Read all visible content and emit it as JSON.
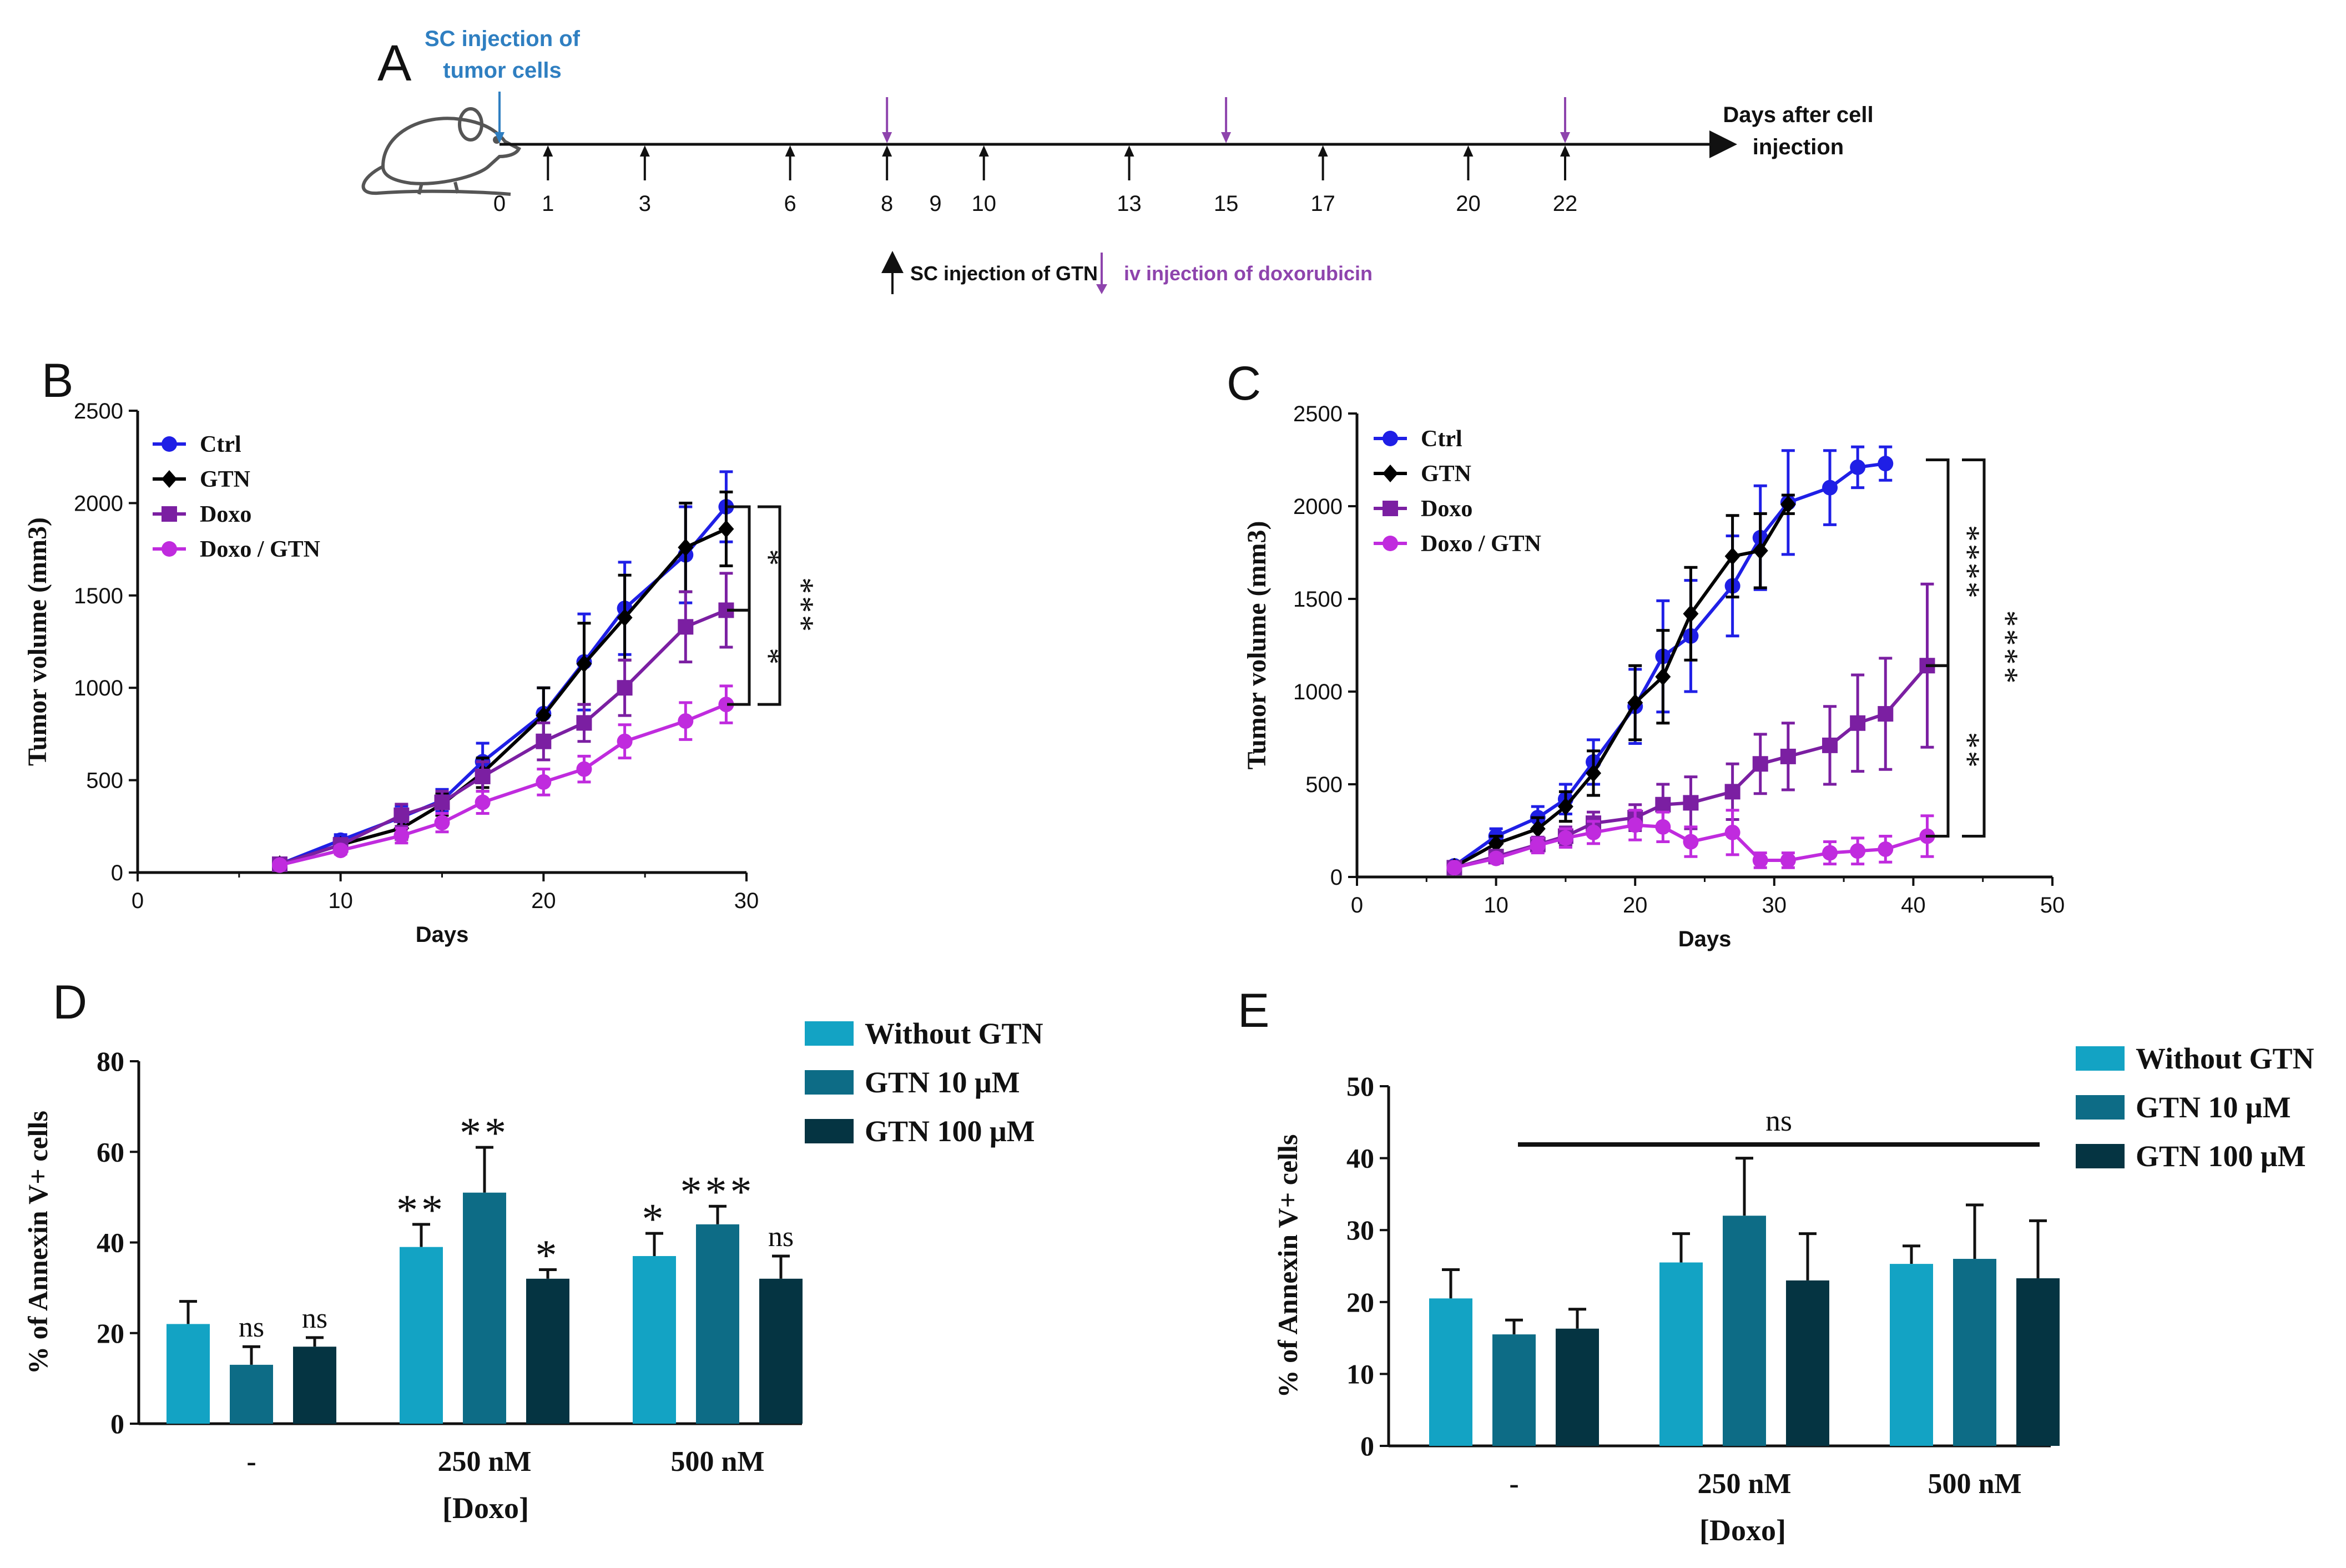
{
  "panel_labels": {
    "A": "A",
    "B": "B",
    "C": "C",
    "D": "D",
    "E": "E"
  },
  "timeline": {
    "sc_injection_line1": "SC injection of",
    "sc_injection_line2": "tumor cells",
    "days_after_line1": "Days after cell",
    "days_after_line2": "injection",
    "days": [
      0,
      1,
      3,
      6,
      8,
      9,
      10,
      13,
      15,
      17,
      20,
      22
    ],
    "gtn_days": [
      1,
      3,
      6,
      8,
      10,
      13,
      17,
      20,
      22
    ],
    "doxo_days": [
      8,
      15,
      22
    ],
    "legend_gtn": "SC injection of GTN",
    "legend_doxo": "iv injection of doxorubicin",
    "colors": {
      "tumor": "#2f7fc1",
      "doxo": "#8e44ad",
      "gtn": "#111111"
    }
  },
  "chart_data": [
    {
      "id": "B",
      "type": "line",
      "title": "",
      "xlabel": "Days",
      "ylabel": "Tumor volume (mm3)",
      "xlim": [
        0,
        30
      ],
      "ylim": [
        0,
        2500
      ],
      "xticks": [
        0,
        10,
        20,
        30
      ],
      "yticks": [
        0,
        500,
        1000,
        1500,
        2000,
        2500
      ],
      "series": [
        {
          "name": "Ctrl",
          "color": "#1f1fe6",
          "marker": "circle",
          "x": [
            7,
            10,
            13,
            15,
            17,
            20,
            22,
            24,
            27,
            29
          ],
          "y": [
            45,
            175,
            300,
            390,
            600,
            860,
            1140,
            1430,
            1720,
            1980
          ],
          "err": [
            15,
            30,
            60,
            60,
            100,
            140,
            260,
            250,
            260,
            190
          ]
        },
        {
          "name": "GTN",
          "color": "#000000",
          "marker": "diamond",
          "x": [
            7,
            10,
            13,
            15,
            17,
            20,
            22,
            24,
            27,
            29
          ],
          "y": [
            45,
            150,
            240,
            370,
            540,
            850,
            1130,
            1380,
            1760,
            1860
          ],
          "err": [
            15,
            30,
            60,
            60,
            80,
            150,
            220,
            230,
            240,
            200
          ]
        },
        {
          "name": "Doxo",
          "color": "#7b1fa2",
          "marker": "square",
          "x": [
            7,
            10,
            13,
            15,
            17,
            20,
            22,
            24,
            27,
            29
          ],
          "y": [
            45,
            150,
            310,
            380,
            520,
            710,
            810,
            1000,
            1330,
            1420
          ],
          "err": [
            15,
            30,
            60,
            60,
            80,
            100,
            100,
            150,
            190,
            200
          ]
        },
        {
          "name": "Doxo / GTN",
          "color": "#c02bde",
          "marker": "circle",
          "x": [
            7,
            10,
            13,
            15,
            17,
            20,
            22,
            24,
            27,
            29
          ],
          "y": [
            40,
            120,
            200,
            270,
            380,
            490,
            560,
            710,
            820,
            910
          ],
          "err": [
            10,
            20,
            40,
            50,
            60,
            70,
            70,
            90,
            100,
            100
          ]
        }
      ],
      "significance": [
        {
          "span": [
            1980,
            1420
          ],
          "label": "*"
        },
        {
          "span": [
            1420,
            910
          ],
          "label": "*"
        },
        {
          "span": [
            1980,
            910
          ],
          "label": "***"
        }
      ]
    },
    {
      "id": "C",
      "type": "line",
      "title": "",
      "xlabel": "Days",
      "ylabel": "Tumor volume (mm3)",
      "xlim": [
        0,
        50
      ],
      "ylim": [
        0,
        2500
      ],
      "xticks": [
        0,
        10,
        20,
        30,
        40,
        50
      ],
      "yticks": [
        0,
        500,
        1000,
        1500,
        2000,
        2500
      ],
      "series": [
        {
          "name": "Ctrl",
          "color": "#1f1fe6",
          "marker": "circle",
          "x": [
            7,
            10,
            13,
            15,
            17,
            20,
            22,
            24,
            27,
            29,
            31,
            34,
            36,
            38
          ],
          "y": [
            60,
            220,
            320,
            420,
            620,
            920,
            1190,
            1300,
            1570,
            1830,
            2020,
            2100,
            2210,
            2230
          ],
          "err": [
            15,
            40,
            60,
            80,
            120,
            200,
            300,
            300,
            270,
            280,
            280,
            200,
            110,
            90
          ]
        },
        {
          "name": "GTN",
          "color": "#000000",
          "marker": "diamond",
          "x": [
            7,
            10,
            13,
            15,
            17,
            20,
            22,
            24,
            27,
            29,
            31
          ],
          "y": [
            55,
            180,
            260,
            380,
            560,
            940,
            1080,
            1420,
            1730,
            1760,
            2010
          ],
          "err": [
            15,
            40,
            60,
            80,
            120,
            200,
            250,
            250,
            220,
            200,
            50
          ]
        },
        {
          "name": "Doxo",
          "color": "#7b1fa2",
          "marker": "square",
          "x": [
            7,
            10,
            13,
            15,
            17,
            20,
            22,
            24,
            27,
            29,
            31,
            34,
            36,
            38,
            41
          ],
          "y": [
            50,
            110,
            175,
            220,
            290,
            320,
            390,
            400,
            460,
            610,
            650,
            710,
            830,
            880,
            1140
          ],
          "err": [
            10,
            20,
            40,
            50,
            60,
            70,
            110,
            140,
            150,
            160,
            180,
            210,
            260,
            300,
            440
          ]
        },
        {
          "name": "Doxo / GTN",
          "color": "#c02bde",
          "marker": "circle",
          "x": [
            7,
            10,
            13,
            15,
            17,
            20,
            22,
            24,
            27,
            29,
            31,
            34,
            36,
            38,
            41
          ],
          "y": [
            50,
            100,
            170,
            210,
            240,
            280,
            270,
            190,
            240,
            90,
            90,
            130,
            140,
            150,
            220
          ],
          "err": [
            10,
            20,
            40,
            50,
            60,
            80,
            80,
            80,
            120,
            40,
            40,
            60,
            70,
            70,
            110
          ]
        }
      ],
      "significance": [
        {
          "span": [
            2250,
            1140
          ],
          "label": "****"
        },
        {
          "span": [
            1140,
            220
          ],
          "label": "**"
        },
        {
          "span": [
            2250,
            220
          ],
          "label": "****"
        }
      ]
    },
    {
      "id": "D",
      "type": "bar",
      "title": "",
      "xlabel": "[Doxo]",
      "ylabel": "% of Annexin V+ cells",
      "ylim": [
        0,
        80
      ],
      "yticks": [
        0,
        20,
        40,
        60,
        80
      ],
      "categories": [
        "-",
        "250 nM",
        "500 nM"
      ],
      "series": [
        {
          "name": "Without GTN",
          "color": "#13a3c4",
          "values": [
            22,
            39,
            37
          ],
          "err": [
            5,
            5,
            5
          ],
          "sig": [
            "",
            "**",
            "*"
          ]
        },
        {
          "name": "GTN 10 μM",
          "color": "#0d6c86",
          "values": [
            13,
            51,
            44
          ],
          "err": [
            4,
            10,
            4
          ],
          "sig": [
            "ns",
            "**",
            "***"
          ]
        },
        {
          "name": "GTN 100 μM",
          "color": "#053442",
          "values": [
            17,
            32,
            32
          ],
          "err": [
            2,
            2,
            5
          ],
          "sig": [
            "ns",
            "*",
            "ns"
          ]
        }
      ]
    },
    {
      "id": "E",
      "type": "bar",
      "title": "",
      "xlabel": "[Doxo]",
      "ylabel": "% of Annexin V+ cells",
      "ylim": [
        0,
        50
      ],
      "yticks": [
        0,
        10,
        20,
        30,
        40,
        50
      ],
      "categories": [
        "-",
        "250 nM",
        "500 nM"
      ],
      "series": [
        {
          "name": "Without GTN",
          "color": "#13a3c4",
          "values": [
            20.5,
            25.5,
            25.3
          ],
          "err": [
            4,
            4,
            2.5
          ],
          "sig": [
            "",
            "",
            ""
          ]
        },
        {
          "name": "GTN 10 μM",
          "color": "#0d6c86",
          "values": [
            15.5,
            32,
            26
          ],
          "err": [
            2,
            8,
            7.5
          ],
          "sig": [
            "",
            "",
            ""
          ]
        },
        {
          "name": "GTN 100 μM",
          "color": "#053442",
          "values": [
            16.3,
            23,
            23.3
          ],
          "err": [
            2.7,
            6.5,
            8
          ],
          "sig": [
            "",
            "",
            ""
          ]
        }
      ],
      "overall_sig": "ns"
    }
  ]
}
